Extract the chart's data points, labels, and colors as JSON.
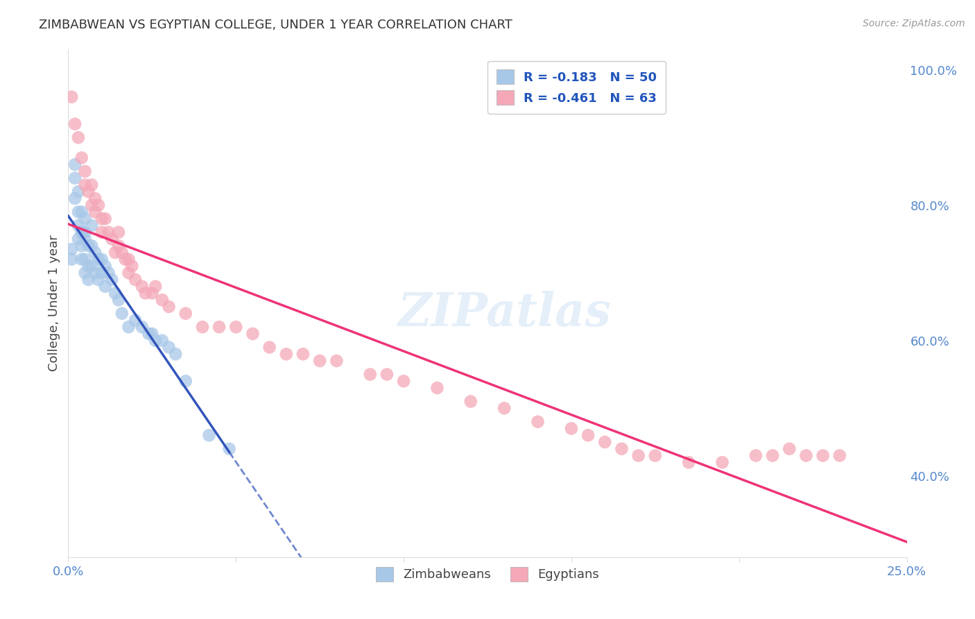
{
  "title": "ZIMBABWEAN VS EGYPTIAN COLLEGE, UNDER 1 YEAR CORRELATION CHART",
  "source": "Source: ZipAtlas.com",
  "ylabel": "College, Under 1 year",
  "x_min": 0.0,
  "x_max": 0.25,
  "y_min": 0.28,
  "y_max": 1.03,
  "x_ticks": [
    0.0,
    0.05,
    0.1,
    0.15,
    0.2,
    0.25
  ],
  "x_tick_labels": [
    "0.0%",
    "",
    "",
    "",
    "",
    "25.0%"
  ],
  "y_ticks": [
    0.4,
    0.6,
    0.8,
    1.0
  ],
  "y_tick_labels": [
    "40.0%",
    "60.0%",
    "80.0%",
    "100.0%"
  ],
  "legend_r1": "-0.183",
  "legend_n1": "50",
  "legend_r2": "-0.461",
  "legend_n2": "63",
  "blue_color": "#A8C8E8",
  "pink_color": "#F4A8B8",
  "blue_line_color": "#3355BB",
  "pink_line_color": "#EE3377",
  "watermark": "ZIPatlas",
  "zimbabwean_x": [
    0.001,
    0.001,
    0.002,
    0.002,
    0.002,
    0.003,
    0.003,
    0.003,
    0.003,
    0.004,
    0.004,
    0.004,
    0.004,
    0.004,
    0.005,
    0.005,
    0.005,
    0.005,
    0.005,
    0.006,
    0.006,
    0.006,
    0.007,
    0.007,
    0.007,
    0.008,
    0.008,
    0.009,
    0.009,
    0.01,
    0.01,
    0.011,
    0.011,
    0.012,
    0.013,
    0.014,
    0.015,
    0.016,
    0.018,
    0.02,
    0.022,
    0.024,
    0.025,
    0.026,
    0.028,
    0.03,
    0.032,
    0.035,
    0.042,
    0.048
  ],
  "zimbabwean_y": [
    0.735,
    0.72,
    0.86,
    0.84,
    0.81,
    0.79,
    0.77,
    0.75,
    0.82,
    0.76,
    0.74,
    0.72,
    0.79,
    0.76,
    0.78,
    0.75,
    0.72,
    0.7,
    0.76,
    0.74,
    0.71,
    0.69,
    0.77,
    0.74,
    0.71,
    0.73,
    0.7,
    0.72,
    0.69,
    0.72,
    0.7,
    0.71,
    0.68,
    0.7,
    0.69,
    0.67,
    0.66,
    0.64,
    0.62,
    0.63,
    0.62,
    0.61,
    0.61,
    0.6,
    0.6,
    0.59,
    0.58,
    0.54,
    0.46,
    0.44
  ],
  "egyptian_x": [
    0.001,
    0.002,
    0.003,
    0.004,
    0.005,
    0.005,
    0.006,
    0.007,
    0.007,
    0.008,
    0.008,
    0.009,
    0.01,
    0.01,
    0.011,
    0.012,
    0.013,
    0.014,
    0.015,
    0.015,
    0.016,
    0.017,
    0.018,
    0.018,
    0.019,
    0.02,
    0.022,
    0.023,
    0.025,
    0.026,
    0.028,
    0.03,
    0.035,
    0.04,
    0.045,
    0.05,
    0.055,
    0.06,
    0.065,
    0.07,
    0.075,
    0.08,
    0.09,
    0.095,
    0.1,
    0.11,
    0.12,
    0.13,
    0.14,
    0.15,
    0.155,
    0.16,
    0.165,
    0.17,
    0.175,
    0.185,
    0.195,
    0.205,
    0.21,
    0.215,
    0.22,
    0.225,
    0.23
  ],
  "egyptian_y": [
    0.96,
    0.92,
    0.9,
    0.87,
    0.85,
    0.83,
    0.82,
    0.8,
    0.83,
    0.81,
    0.79,
    0.8,
    0.78,
    0.76,
    0.78,
    0.76,
    0.75,
    0.73,
    0.74,
    0.76,
    0.73,
    0.72,
    0.72,
    0.7,
    0.71,
    0.69,
    0.68,
    0.67,
    0.67,
    0.68,
    0.66,
    0.65,
    0.64,
    0.62,
    0.62,
    0.62,
    0.61,
    0.59,
    0.58,
    0.58,
    0.57,
    0.57,
    0.55,
    0.55,
    0.54,
    0.53,
    0.51,
    0.5,
    0.48,
    0.47,
    0.46,
    0.45,
    0.44,
    0.43,
    0.43,
    0.42,
    0.42,
    0.43,
    0.43,
    0.44,
    0.43,
    0.43,
    0.43
  ]
}
